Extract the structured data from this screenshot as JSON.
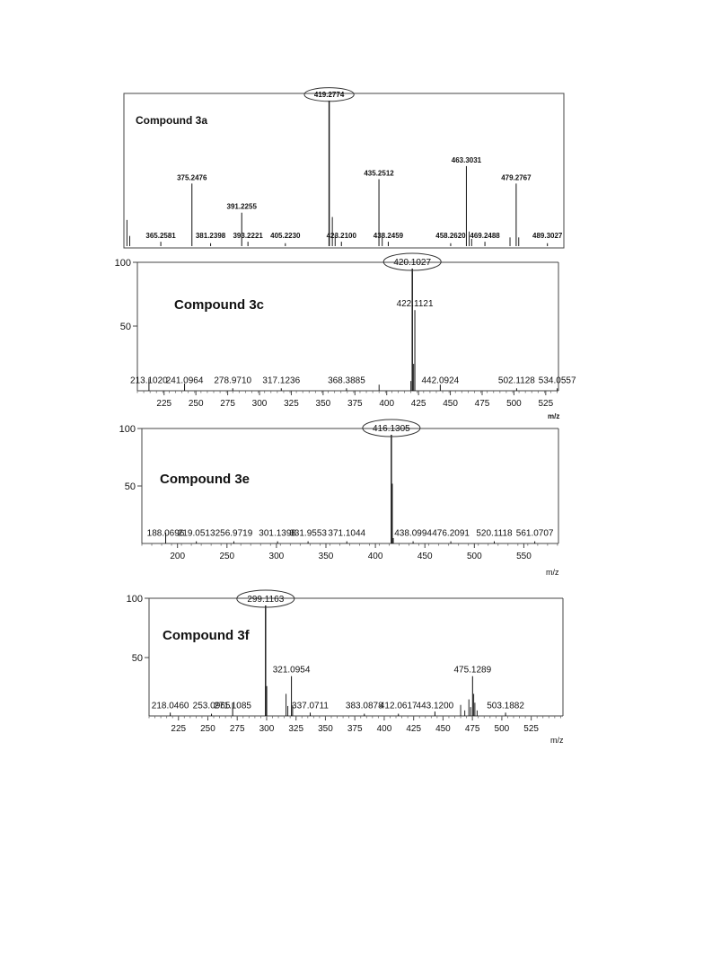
{
  "figure": {
    "panels": [
      {
        "title": "Compound 3a",
        "mz_label": "",
        "y_max_label": "",
        "y_mid_label": ""
      },
      {
        "title": "Compound 3c",
        "mz_label": "m/z",
        "y_max_label": "100",
        "y_mid_label": "50"
      },
      {
        "title": "Compound 3e",
        "mz_label": "m/z",
        "y_max_label": "100",
        "y_mid_label": "50"
      },
      {
        "title": "Compound 3f",
        "mz_label": "m/z",
        "y_max_label": "100",
        "y_mid_label": "50"
      }
    ]
  },
  "chart_data": [
    {
      "type": "bar",
      "title": "Compound 3a",
      "xlim": [
        354,
        494
      ],
      "ylim": [
        0,
        100
      ],
      "xticks": [],
      "labeled_peaks": [
        {
          "mz": 365.2581,
          "label": "365.2581",
          "intensity": 3
        },
        {
          "mz": 375.2476,
          "label": "375.2476",
          "intensity": 43
        },
        {
          "mz": 381.2398,
          "label": "381.2398",
          "intensity": 2
        },
        {
          "mz": 391.2255,
          "label": "391.2255",
          "intensity": 23
        },
        {
          "mz": 393.2221,
          "label": "393.2221",
          "intensity": 3
        },
        {
          "mz": 405.223,
          "label": "405.2230",
          "intensity": 2
        },
        {
          "mz": 419.2774,
          "label": "419.2774",
          "intensity": 100,
          "circled": true
        },
        {
          "mz": 423.21,
          "label": "423.2100",
          "intensity": 3
        },
        {
          "mz": 435.2512,
          "label": "435.2512",
          "intensity": 46
        },
        {
          "mz": 438.2459,
          "label": "438.2459",
          "intensity": 3
        },
        {
          "mz": 458.262,
          "label": "458.2620",
          "intensity": 2
        },
        {
          "mz": 463.3031,
          "label": "463.3031",
          "intensity": 55
        },
        {
          "mz": 469.2488,
          "label": "469.2488",
          "intensity": 3
        },
        {
          "mz": 479.2767,
          "label": "479.2767",
          "intensity": 43
        },
        {
          "mz": 489.3027,
          "label": "489.3027",
          "intensity": 2
        }
      ],
      "minor_peaks": [
        {
          "mz": 354.4,
          "intensity": 18
        },
        {
          "mz": 355.3,
          "intensity": 7
        },
        {
          "mz": 420.3,
          "intensity": 20
        },
        {
          "mz": 421.2,
          "intensity": 8
        },
        {
          "mz": 436.3,
          "intensity": 6
        },
        {
          "mz": 464.2,
          "intensity": 10
        },
        {
          "mz": 465.0,
          "intensity": 5
        },
        {
          "mz": 477.3,
          "intensity": 6
        },
        {
          "mz": 480.1,
          "intensity": 6
        }
      ]
    },
    {
      "type": "bar",
      "title": "Compound 3c",
      "xlim": [
        204,
        535
      ],
      "ylim": [
        0,
        100
      ],
      "xticks": [
        225,
        250,
        275,
        300,
        325,
        350,
        375,
        400,
        425,
        450,
        475,
        500,
        525
      ],
      "xlabel": "m/z",
      "labeled_peaks": [
        {
          "mz": 213.102,
          "label": "213.1020",
          "intensity": 10
        },
        {
          "mz": 241.0964,
          "label": "241.0964",
          "intensity": 6
        },
        {
          "mz": 278.971,
          "label": "278.9710",
          "intensity": 2
        },
        {
          "mz": 317.1236,
          "label": "317.1236",
          "intensity": 2
        },
        {
          "mz": 368.3885,
          "label": "368.3885",
          "intensity": 2
        },
        {
          "mz": 420.1027,
          "label": "420.1027",
          "intensity": 100,
          "circled": true
        },
        {
          "mz": 422.1121,
          "label": "422.1121",
          "intensity": 66
        },
        {
          "mz": 442.0924,
          "label": "442.0924",
          "intensity": 5
        },
        {
          "mz": 502.1128,
          "label": "502.1128",
          "intensity": 2
        },
        {
          "mz": 534.0557,
          "label": "534.0557",
          "intensity": 2
        }
      ],
      "minor_peaks": [
        {
          "mz": 394.0,
          "intensity": 5
        },
        {
          "mz": 421.1,
          "intensity": 22
        },
        {
          "mz": 419.0,
          "intensity": 8
        }
      ]
    },
    {
      "type": "bar",
      "title": "Compound 3e",
      "xlim": [
        164,
        585
      ],
      "ylim": [
        0,
        100
      ],
      "xticks": [
        200,
        250,
        300,
        350,
        400,
        450,
        500,
        550
      ],
      "xlabel": "m/z",
      "labeled_peaks": [
        {
          "mz": 188.0696,
          "label": "188.0696",
          "intensity": 10
        },
        {
          "mz": 219.0513,
          "label": "219.0513",
          "intensity": 2
        },
        {
          "mz": 256.9719,
          "label": "256.9719",
          "intensity": 2
        },
        {
          "mz": 301.1398,
          "label": "301.1398",
          "intensity": 2
        },
        {
          "mz": 331.9553,
          "label": "331.9553",
          "intensity": 2
        },
        {
          "mz": 371.1044,
          "label": "371.1044",
          "intensity": 2
        },
        {
          "mz": 416.1305,
          "label": "416.1305",
          "intensity": 100,
          "circled": true
        },
        {
          "mz": 438.0994,
          "label": "438.0994",
          "intensity": 2
        },
        {
          "mz": 476.2091,
          "label": "476.2091",
          "intensity": 2
        },
        {
          "mz": 520.1118,
          "label": "520.1118",
          "intensity": 2
        },
        {
          "mz": 561.0707,
          "label": "561.0707",
          "intensity": 2
        }
      ],
      "minor_peaks": [
        {
          "mz": 417.1,
          "intensity": 55
        },
        {
          "mz": 418.1,
          "intensity": 5
        }
      ]
    },
    {
      "type": "bar",
      "title": "Compound 3f",
      "xlim": [
        200,
        552
      ],
      "ylim": [
        0,
        100
      ],
      "xticks": [
        225,
        250,
        275,
        300,
        325,
        350,
        375,
        400,
        425,
        450,
        475,
        500,
        525
      ],
      "xlabel": "m/z",
      "labeled_peaks": [
        {
          "mz": 218.046,
          "label": "218.0460",
          "intensity": 3
        },
        {
          "mz": 253.0965,
          "label": "253.0965",
          "intensity": 2
        },
        {
          "mz": 271.1085,
          "label": "271.1085",
          "intensity": 12
        },
        {
          "mz": 299.1163,
          "label": "299.1163",
          "intensity": 100,
          "circled": true
        },
        {
          "mz": 321.0954,
          "label": "321.0954",
          "intensity": 36
        },
        {
          "mz": 337.0711,
          "label": "337.0711",
          "intensity": 3
        },
        {
          "mz": 383.0878,
          "label": "383.0878",
          "intensity": 2
        },
        {
          "mz": 412.0617,
          "label": "412.0617",
          "intensity": 2
        },
        {
          "mz": 443.12,
          "label": "443.1200",
          "intensity": 4
        },
        {
          "mz": 475.1289,
          "label": "475.1289",
          "intensity": 36
        },
        {
          "mz": 503.1882,
          "label": "503.1882",
          "intensity": 3
        }
      ],
      "minor_peaks": [
        {
          "mz": 300.1,
          "intensity": 27
        },
        {
          "mz": 316.5,
          "intensity": 20
        },
        {
          "mz": 318.0,
          "intensity": 9
        },
        {
          "mz": 322.1,
          "intensity": 10
        },
        {
          "mz": 465.0,
          "intensity": 10
        },
        {
          "mz": 472.0,
          "intensity": 15
        },
        {
          "mz": 476.1,
          "intensity": 20
        },
        {
          "mz": 477.1,
          "intensity": 12
        },
        {
          "mz": 473.5,
          "intensity": 8
        },
        {
          "mz": 479.0,
          "intensity": 5
        },
        {
          "mz": 468.5,
          "intensity": 5
        }
      ]
    }
  ]
}
